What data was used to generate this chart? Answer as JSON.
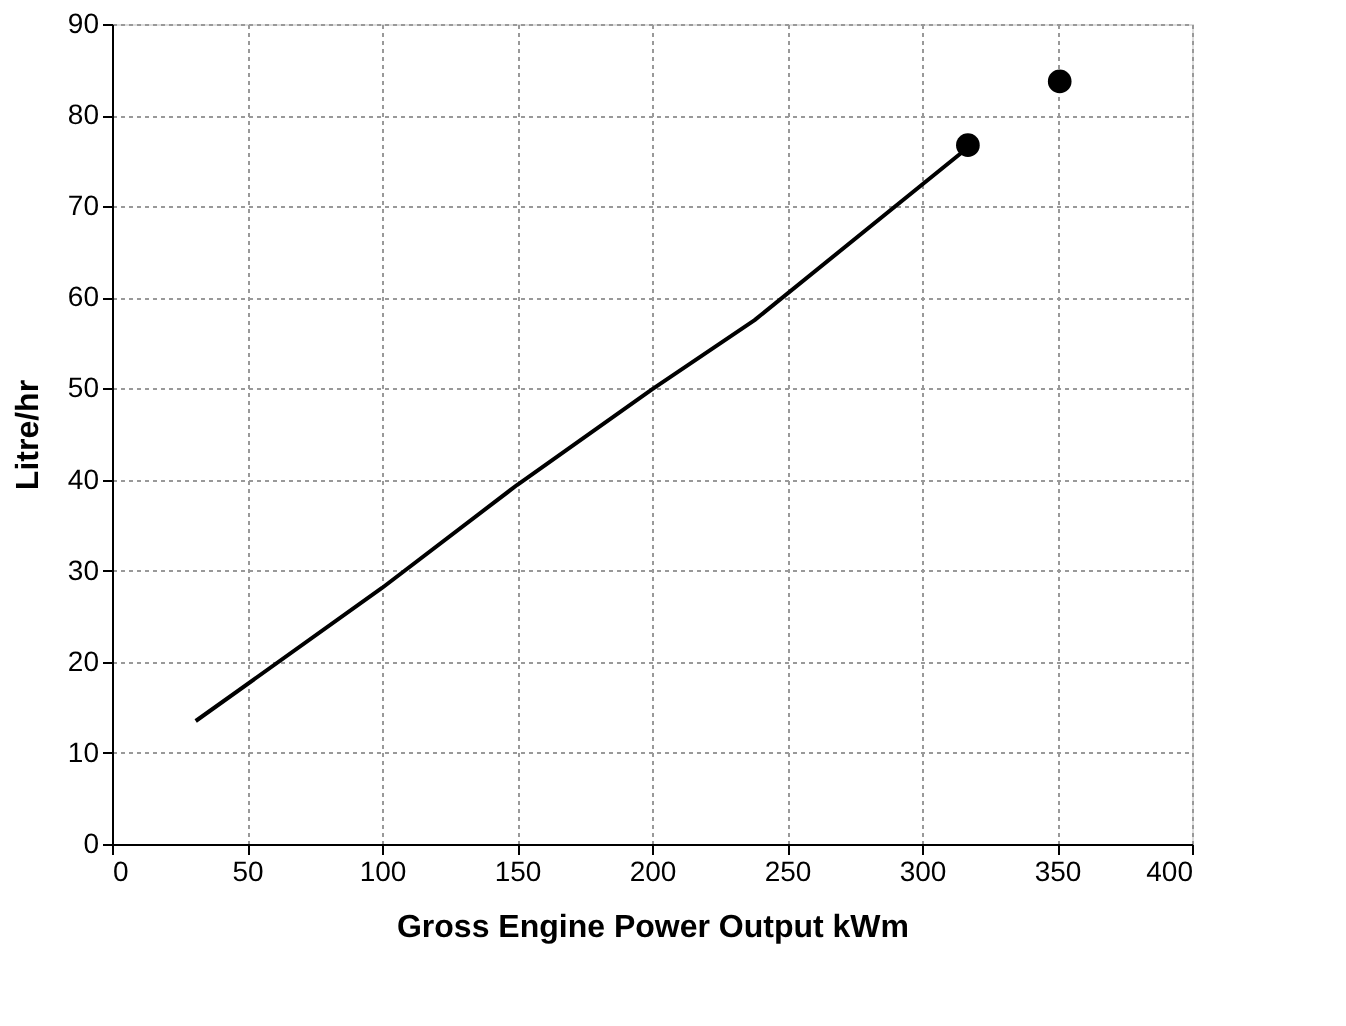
{
  "chart_data": {
    "type": "line",
    "xlabel": "Gross Engine Power Output kWm",
    "ylabel": "Litre/hr",
    "xlim": [
      0,
      400
    ],
    "xticks": [
      0,
      50,
      100,
      150,
      200,
      250,
      300,
      350,
      400
    ],
    "ylim": [
      0,
      90
    ],
    "yticks": [
      0,
      10,
      20,
      30,
      40,
      50,
      60,
      70,
      80,
      90
    ],
    "grid": true,
    "series": [
      {
        "color": "#000000",
        "marker": "none",
        "line_style": "solid",
        "x": [
          31,
          100,
          150,
          200,
          238,
          316
        ],
        "values": [
          13.5,
          28.1,
          39.4,
          49.9,
          57.5,
          76.2
        ]
      },
      {
        "type": "scatter",
        "color": "#000000",
        "marker": "circle",
        "x": [
          317,
          351
        ],
        "values": [
          76.7,
          83.7
        ]
      }
    ]
  }
}
